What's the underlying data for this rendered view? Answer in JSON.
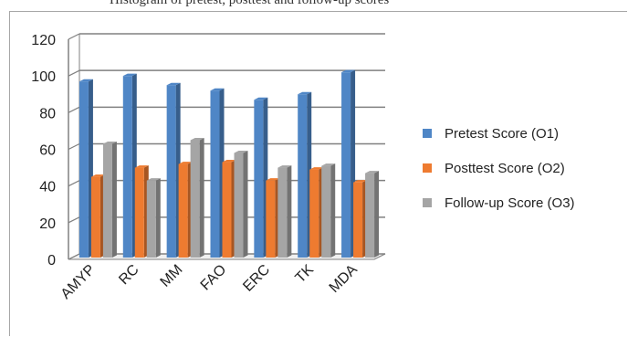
{
  "caption": "Histogram of pretest, posttest and follow-up scores",
  "chart_data": {
    "type": "bar",
    "title": "",
    "xlabel": "",
    "ylabel": "",
    "categories": [
      "AMYP",
      "RC",
      "MM",
      "FAO",
      "ERC",
      "TK",
      "MDA"
    ],
    "ylim": [
      0,
      120
    ],
    "yticks": [
      0,
      20,
      40,
      60,
      80,
      100,
      120
    ],
    "grid": true,
    "legend_position": "right",
    "series": [
      {
        "name": "Pretest Score (O1)",
        "color": "#4f86c6",
        "values": [
          97,
          100,
          95,
          92,
          87,
          90,
          102
        ]
      },
      {
        "name": "Posttest Score  (O2)",
        "color": "#ee7b30",
        "values": [
          45,
          50,
          52,
          53,
          43,
          49,
          42
        ]
      },
      {
        "name": "Follow-up Score  (O3)",
        "color": "#a5a5a5",
        "values": [
          63,
          43,
          65,
          58,
          50,
          51,
          47
        ]
      }
    ]
  }
}
